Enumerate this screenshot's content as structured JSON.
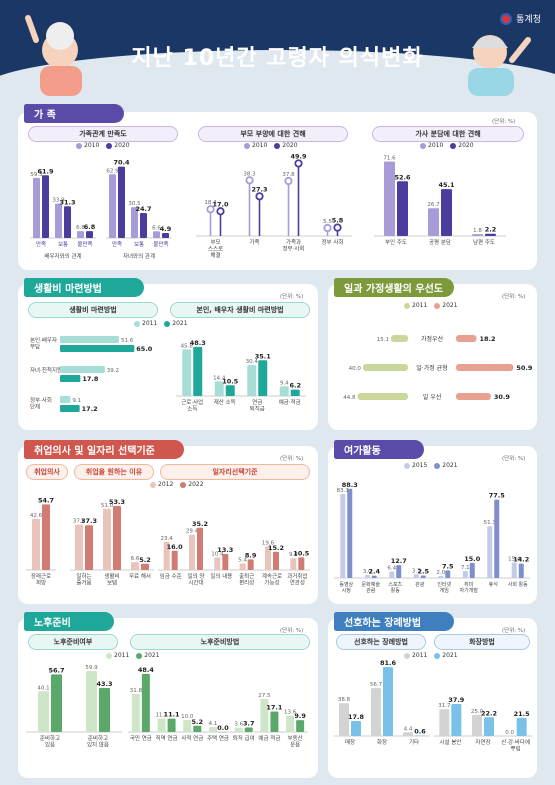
{
  "header": {
    "title": "지난 10년간 고령자 의식변화",
    "org": "통계청"
  },
  "family": {
    "title": "가 족",
    "unit": "(단위: %)",
    "sat": {
      "title": "가족관계 만족도",
      "legend": [
        "2010",
        "2020"
      ],
      "groups": [
        {
          "label": "배우자와의 관계",
          "cats": [
            "만족",
            "보통",
            "불만족"
          ],
          "v2010": [
            59.3,
            33.9,
            6.8
          ],
          "v2020": [
            61.9,
            31.3,
            6.8
          ]
        },
        {
          "label": "자녀와의 관계",
          "cats": [
            "만족",
            "보통",
            "불만족"
          ],
          "v2010": [
            62.9,
            30.5,
            6.6
          ],
          "v2020": [
            70.4,
            24.7,
            4.9
          ]
        }
      ]
    },
    "care": {
      "title": "부모 부양에 대한 견해",
      "legend": [
        "2010",
        "2020"
      ],
      "cats": [
        "부모 스스로 해결",
        "가족",
        "가족과 정부·사회",
        "정부 사회"
      ],
      "v2010": [
        18.4,
        38.3,
        37.8,
        5.5
      ],
      "v2020": [
        17.0,
        27.3,
        49.9,
        5.8
      ]
    },
    "chores": {
      "title": "가사 분담에 대한 견해",
      "legend": [
        "2010",
        "2020"
      ],
      "cats": [
        "부인 주도",
        "공평 분담",
        "남편 주도"
      ],
      "v2010": [
        71.6,
        26.7,
        1.8
      ],
      "v2020": [
        52.6,
        45.1,
        2.2
      ]
    }
  },
  "living": {
    "title": "생활비 마련방법",
    "unit": "(단위: %)",
    "legend": [
      "2011",
      "2021"
    ],
    "a": {
      "title": "생활비 마련방법",
      "cats": [
        "본인·배우자 부담",
        "자녀·친척지원",
        "정부·사회 단체"
      ],
      "v2011": [
        51.6,
        39.2,
        9.1
      ],
      "v2021": [
        65.0,
        17.8,
        17.2
      ]
    },
    "b": {
      "title": "본인, 배우자 생활비 마련방법",
      "cats": [
        "근로·사업 소득",
        "재산 소득",
        "연금 퇴직금",
        "예금·적금"
      ],
      "v2011": [
        45.8,
        14.4,
        30.4,
        9.4
      ],
      "v2021": [
        48.3,
        10.5,
        35.1,
        6.2
      ]
    }
  },
  "worklife": {
    "title": "일과 가정생활의 우선도",
    "unit": "(단위: %)",
    "legend": [
      "2011",
      "2021"
    ],
    "cats": [
      "가정우선",
      "일·가정 균형",
      "일 우선"
    ],
    "v2011": [
      15.1,
      40.0,
      44.8
    ],
    "v2021": [
      18.2,
      50.9,
      30.9
    ]
  },
  "job": {
    "title": "취업의사 및 일자리 선택기준",
    "unit": "(단위: %)",
    "legend": [
      "2012",
      "2022"
    ],
    "p1": "취업의사",
    "p2": "취업을 원하는 이유",
    "p3": "일자리선택기준",
    "will": {
      "cats": [
        "장래근로 희망"
      ],
      "v2012": [
        42.6
      ],
      "v2022": [
        54.7
      ]
    },
    "reason": {
      "cats": [
        "일하는 즐거움",
        "생활비 보탬",
        "무료 해서"
      ],
      "v2012": [
        37.8,
        51.0,
        6.6
      ],
      "v2022": [
        37.3,
        53.3,
        5.2
      ]
    },
    "crit": {
      "cats": [
        "임금 수준",
        "일의 양 시간대",
        "일의 내용",
        "출퇴근 편리성",
        "계속근로 가능성",
        "과거취업 연관성"
      ],
      "v2012": [
        23.4,
        29.4,
        10.4,
        5.4,
        19.6,
        9.8
      ],
      "v2022": [
        16.0,
        35.2,
        13.3,
        8.9,
        15.2,
        10.5
      ]
    }
  },
  "leisure": {
    "title": "여가활동",
    "unit": "(단위: %)",
    "legend": [
      "2015",
      "2021"
    ],
    "cats": [
      "동영상 시청",
      "문화예술 관람",
      "스포츠 활동",
      "관광",
      "인터넷 게임",
      "취미 자기개발",
      "휴식",
      "사회 활동"
    ],
    "v2015": [
      83.1,
      3.0,
      6.4,
      3.7,
      2.0,
      7.1,
      51.3,
      15.4
    ],
    "v2021": [
      88.3,
      2.4,
      12.7,
      2.5,
      7.5,
      15.0,
      77.5,
      14.2
    ]
  },
  "retire": {
    "title": "노후준비",
    "unit": "(단위: %)",
    "legend": [
      "2011",
      "2021"
    ],
    "p1": "노후준비여부",
    "p2": "노후준비방법",
    "a": {
      "cats": [
        "준비하고 있음",
        "준비하고 있지 않음"
      ],
      "v2011": [
        40.1,
        59.9
      ],
      "v2021": [
        56.7,
        43.3
      ]
    },
    "b": {
      "cats": [
        "국민 연금",
        "직역 연금",
        "사적 연금",
        "주택 연금",
        "퇴직 급여",
        "예금 적금",
        "부동산 운용"
      ],
      "v2011": [
        31.8,
        11.1,
        10.0,
        4.1,
        3.6,
        27.5,
        13.6
      ],
      "v2021": [
        48.4,
        11.1,
        5.2,
        0.0,
        3.7,
        17.1,
        9.9
      ]
    }
  },
  "funeral": {
    "title": "선호하는 장례방법",
    "unit": "(단위: %)",
    "legend": [
      "2011",
      "2021"
    ],
    "p1": "선호하는 장례방법",
    "p2": "화장방법",
    "a": {
      "cats": [
        "매장",
        "화장",
        "기타"
      ],
      "v2011": [
        38.8,
        56.7,
        4.4
      ],
      "v2021": [
        17.8,
        81.6,
        0.6
      ]
    },
    "b": {
      "cats": [
        "시설 봉안",
        "자연장",
        "산·강·바다에 뿌림"
      ],
      "v2011": [
        31.7,
        25.0,
        0
      ],
      "v2021": [
        37.9,
        22.2,
        21.5
      ]
    }
  }
}
